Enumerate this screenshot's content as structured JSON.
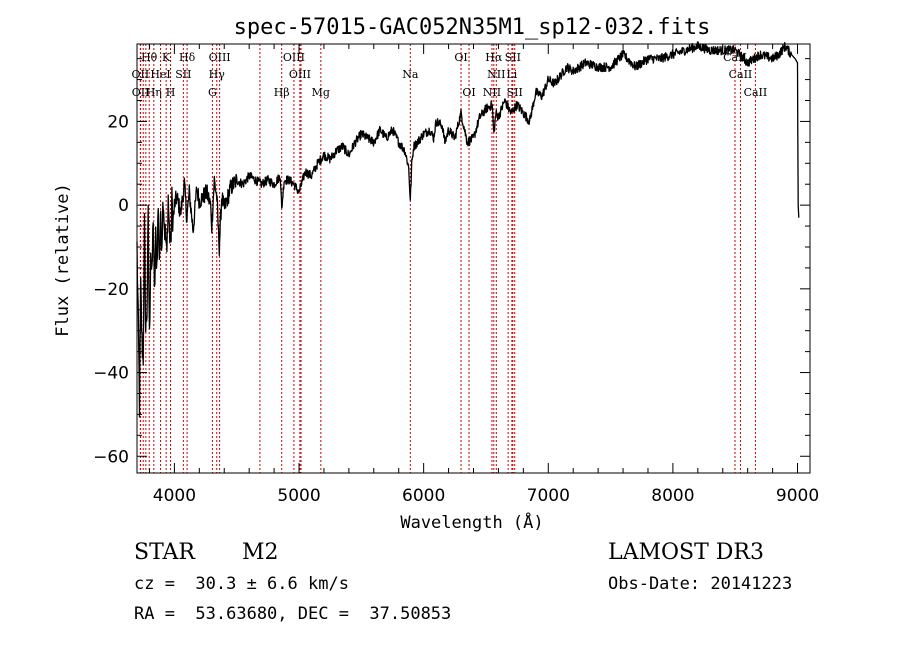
{
  "chart_data": {
    "type": "line",
    "title": "spec-57015-GAC052N35M1_sp12-032.fits",
    "xlabel": "Wavelength (Å)",
    "ylabel": "Flux (relative)",
    "xlim": [
      3700,
      9100
    ],
    "ylim": [
      -64,
      38.5
    ],
    "xticks": [
      4000,
      5000,
      6000,
      7000,
      8000,
      9000
    ],
    "yticks": [
      -60,
      -40,
      -20,
      0,
      20
    ],
    "xminor": 200,
    "yminor": 5,
    "series": [
      {
        "name": "flux",
        "x": [
          3700,
          3710,
          3720,
          3730,
          3740,
          3750,
          3760,
          3770,
          3780,
          3790,
          3800,
          3810,
          3820,
          3830,
          3840,
          3850,
          3860,
          3870,
          3880,
          3890,
          3900,
          3910,
          3920,
          3930,
          3940,
          3950,
          3960,
          3970,
          3980,
          3990,
          4000,
          4020,
          4050,
          4080,
          4100,
          4120,
          4150,
          4180,
          4200,
          4230,
          4260,
          4290,
          4300,
          4320,
          4340,
          4360,
          4380,
          4400,
          4450,
          4500,
          4550,
          4600,
          4650,
          4700,
          4750,
          4800,
          4850,
          4861,
          4880,
          4920,
          4960,
          5000,
          5050,
          5100,
          5150,
          5200,
          5250,
          5300,
          5350,
          5400,
          5450,
          5500,
          5550,
          5600,
          5650,
          5700,
          5750,
          5800,
          5850,
          5880,
          5893,
          5905,
          5920,
          5950,
          6000,
          6050,
          6080,
          6100,
          6150,
          6170,
          6200,
          6250,
          6300,
          6350,
          6400,
          6450,
          6500,
          6550,
          6563,
          6580,
          6600,
          6650,
          6700,
          6750,
          6800,
          6850,
          6900,
          6950,
          7000,
          7050,
          7100,
          7150,
          7200,
          7300,
          7400,
          7500,
          7600,
          7700,
          7800,
          7900,
          8000,
          8100,
          8200,
          8300,
          8400,
          8500,
          8600,
          8700,
          8800,
          8850,
          8900,
          8950,
          8980,
          9000,
          9005,
          9010
        ],
        "y": [
          -10,
          -28,
          -48,
          -20,
          -33,
          -36,
          -5,
          -30,
          -25,
          -3,
          -32,
          -10,
          -18,
          -2,
          -22,
          -8,
          -14,
          0,
          -12,
          -5,
          -8,
          3,
          -5,
          -8,
          -12,
          2,
          -6,
          -10,
          1,
          -4,
          0,
          2,
          -2,
          5,
          -3,
          3,
          -6,
          4,
          1,
          2,
          3,
          0,
          -5,
          6,
          2,
          -10,
          2,
          -1,
          4,
          6,
          5,
          7,
          6,
          5,
          6,
          5,
          7,
          -1,
          6,
          6,
          5,
          3,
          8,
          7,
          10,
          12,
          11,
          13,
          14,
          12,
          15,
          17,
          16,
          15,
          18,
          16,
          18,
          15,
          13,
          9,
          1,
          10,
          14,
          15,
          17,
          18,
          16,
          20,
          19,
          15,
          18,
          16,
          22,
          15,
          16,
          21,
          23,
          24,
          17,
          22,
          21,
          25,
          22,
          24,
          22,
          20,
          27,
          26,
          30,
          29,
          31,
          33,
          32,
          34,
          33,
          33,
          36,
          33,
          35,
          35,
          36,
          37,
          38,
          37,
          37,
          37,
          34,
          36,
          35,
          36,
          38,
          36,
          35,
          34,
          0,
          -3
        ],
        "linewidth": 1.3,
        "color": "#000000"
      }
    ],
    "line_color": "#cc0000",
    "annotations": [
      {
        "label": "Hθ",
        "x": 3798,
        "row": 1
      },
      {
        "label": "K",
        "x": 3934,
        "row": 1
      },
      {
        "label": "Hδ",
        "x": 4102,
        "row": 1
      },
      {
        "label": "OIII",
        "x": 4363,
        "row": 1
      },
      {
        "label": "OIII",
        "x": 4959,
        "row": 1
      },
      {
        "label": "OI",
        "x": 6300,
        "row": 1
      },
      {
        "label": "Hα",
        "x": 6563,
        "row": 1
      },
      {
        "label": "SII",
        "x": 6716,
        "row": 1
      },
      {
        "label": "CaII",
        "x": 8498,
        "row": 1
      },
      {
        "label": "OII",
        "x": 3727,
        "row": 2
      },
      {
        "label": "HeI",
        "x": 3889,
        "row": 2
      },
      {
        "label": "SII",
        "x": 4072,
        "row": 2
      },
      {
        "label": "Hγ",
        "x": 4340,
        "row": 2
      },
      {
        "label": "OIII",
        "x": 5007,
        "row": 2
      },
      {
        "label": "Na",
        "x": 5893,
        "row": 2
      },
      {
        "label": "NII",
        "x": 6583,
        "row": 2
      },
      {
        "label": "Li",
        "x": 6708,
        "row": 2
      },
      {
        "label": "CaII",
        "x": 8542,
        "row": 2
      },
      {
        "label": "OII",
        "x": 3729,
        "row": 3
      },
      {
        "label": "Hη",
        "x": 3835,
        "row": 3
      },
      {
        "label": "H",
        "x": 3969,
        "row": 3
      },
      {
        "label": "G",
        "x": 4305,
        "row": 3
      },
      {
        "label": "Hβ",
        "x": 4861,
        "row": 3
      },
      {
        "label": "Mg",
        "x": 5175,
        "row": 3
      },
      {
        "label": "OI",
        "x": 6364,
        "row": 3
      },
      {
        "label": "NII",
        "x": 6548,
        "row": 3
      },
      {
        "label": "SII",
        "x": 6731,
        "row": 3
      },
      {
        "label": "CaII",
        "x": 8662,
        "row": 3
      }
    ],
    "extra_lines": [
      3750,
      3771,
      4686,
      5016,
      6678
    ]
  },
  "info": {
    "object_class": "STAR",
    "subclass": "M2",
    "survey": "LAMOST DR3",
    "redshift": "cz =  30.3 ± 6.6 km/s",
    "obs_date": "Obs-Date: 20141223",
    "coords": "RA =  53.63680, DEC =  37.50853"
  }
}
